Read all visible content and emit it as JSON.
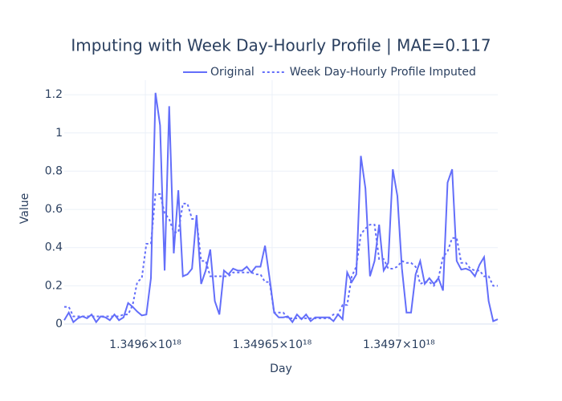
{
  "chart_data": {
    "type": "line",
    "title": "Imputing with Week Day-Hourly Profile | MAE=0.117",
    "x_label": "Day",
    "y_label": "Value",
    "x": [
      1.349568e+18,
      1.3495698e+18,
      1.3495716e+18,
      1.3495734e+18,
      1.3495752e+18,
      1.349577e+18,
      1.3495788e+18,
      1.3495806e+18,
      1.3495824e+18,
      1.3495842e+18,
      1.349586e+18,
      1.3495878e+18,
      1.3495896e+18,
      1.3495914e+18,
      1.3495932e+18,
      1.349595e+18,
      1.3495968e+18,
      1.3495986e+18,
      1.3496004e+18,
      1.3496022e+18,
      1.349604e+18,
      1.3496058e+18,
      1.3496076e+18,
      1.3496094e+18,
      1.3496112e+18,
      1.349613e+18,
      1.3496148e+18,
      1.3496166e+18,
      1.3496184e+18,
      1.3496202e+18,
      1.349622e+18,
      1.3496238e+18,
      1.3496256e+18,
      1.3496274e+18,
      1.3496292e+18,
      1.349631e+18,
      1.3496328e+18,
      1.3496346e+18,
      1.3496364e+18,
      1.3496382e+18,
      1.34964e+18,
      1.3496418e+18,
      1.3496436e+18,
      1.3496454e+18,
      1.3496472e+18,
      1.349649e+18,
      1.3496508e+18,
      1.3496526e+18,
      1.3496544e+18,
      1.3496562e+18,
      1.349658e+18,
      1.3496598e+18,
      1.3496616e+18,
      1.3496634e+18,
      1.3496652e+18,
      1.349667e+18,
      1.3496688e+18,
      1.3496706e+18,
      1.3496724e+18,
      1.3496742e+18,
      1.349676e+18,
      1.3496778e+18,
      1.3496796e+18,
      1.3496814e+18,
      1.3496832e+18,
      1.349685e+18,
      1.3496868e+18,
      1.3496886e+18,
      1.3496904e+18,
      1.3496922e+18,
      1.349694e+18,
      1.3496958e+18,
      1.3496976e+18,
      1.3496994e+18,
      1.3497012e+18,
      1.349703e+18,
      1.3497048e+18,
      1.3497066e+18,
      1.3497084e+18,
      1.3497102e+18,
      1.349712e+18,
      1.3497138e+18,
      1.3497156e+18,
      1.3497174e+18,
      1.3497192e+18,
      1.349721e+18,
      1.3497228e+18,
      1.3497246e+18,
      1.3497264e+18,
      1.3497282e+18,
      1.34973e+18,
      1.3497318e+18,
      1.3497336e+18,
      1.3497354e+18,
      1.3497372e+18,
      1.349739e+18
    ],
    "series": [
      {
        "name": "Original",
        "color": "#636efa",
        "dash": "solid",
        "values": [
          0.02,
          0.06,
          0.01,
          0.03,
          0.04,
          0.03,
          0.05,
          0.01,
          0.04,
          0.035,
          0.02,
          0.05,
          0.02,
          0.035,
          0.11,
          0.09,
          0.065,
          0.045,
          0.05,
          0.24,
          1.21,
          1.04,
          0.28,
          1.14,
          0.37,
          0.7,
          0.25,
          0.26,
          0.29,
          0.57,
          0.21,
          0.28,
          0.39,
          0.12,
          0.05,
          0.28,
          0.26,
          0.29,
          0.28,
          0.28,
          0.3,
          0.27,
          0.3,
          0.3,
          0.41,
          0.24,
          0.06,
          0.035,
          0.035,
          0.04,
          0.01,
          0.05,
          0.025,
          0.05,
          0.015,
          0.035,
          0.035,
          0.035,
          0.035,
          0.015,
          0.05,
          0.025,
          0.27,
          0.22,
          0.26,
          0.88,
          0.71,
          0.25,
          0.33,
          0.52,
          0.28,
          0.32,
          0.81,
          0.67,
          0.29,
          0.06,
          0.06,
          0.26,
          0.33,
          0.21,
          0.24,
          0.21,
          0.24,
          0.175,
          0.74,
          0.81,
          0.33,
          0.285,
          0.29,
          0.28,
          0.25,
          0.31,
          0.35,
          0.12,
          0.015,
          0.025
        ]
      },
      {
        "name": "Week Day-Hourly Profile Imputed",
        "color": "#636efa",
        "dash": "dot",
        "values": [
          0.09,
          0.09,
          0.04,
          0.04,
          0.04,
          0.04,
          0.04,
          0.04,
          0.04,
          0.04,
          0.04,
          0.04,
          0.04,
          0.05,
          0.05,
          0.1,
          0.22,
          0.24,
          0.42,
          0.42,
          0.68,
          0.68,
          0.58,
          0.55,
          0.48,
          0.48,
          0.63,
          0.63,
          0.55,
          0.55,
          0.33,
          0.33,
          0.25,
          0.25,
          0.25,
          0.25,
          0.25,
          0.27,
          0.27,
          0.27,
          0.27,
          0.27,
          0.26,
          0.26,
          0.22,
          0.22,
          0.06,
          0.06,
          0.06,
          0.03,
          0.03,
          0.03,
          0.03,
          0.03,
          0.03,
          0.03,
          0.03,
          0.03,
          0.03,
          0.05,
          0.05,
          0.1,
          0.1,
          0.25,
          0.3,
          0.47,
          0.5,
          0.52,
          0.52,
          0.34,
          0.34,
          0.29,
          0.29,
          0.3,
          0.33,
          0.32,
          0.32,
          0.3,
          0.21,
          0.22,
          0.22,
          0.2,
          0.24,
          0.35,
          0.38,
          0.45,
          0.45,
          0.32,
          0.32,
          0.29,
          0.28,
          0.28,
          0.25,
          0.25,
          0.2,
          0.2
        ]
      }
    ],
    "xlim": [
      1.349568e+18,
      1.349739e+18
    ],
    "xticks": [
      {
        "value": 1.3496e+18,
        "label": "1.3496×10¹⁸"
      },
      {
        "value": 1.34965e+18,
        "label": "1.34965×10¹⁸"
      },
      {
        "value": 1.3497e+18,
        "label": "1.3497×10¹⁸"
      }
    ],
    "ylim": [
      -0.067,
      1.276
    ],
    "yticks": [
      0,
      0.2,
      0.4,
      0.6,
      0.8,
      1,
      1.2
    ],
    "grid": true
  }
}
